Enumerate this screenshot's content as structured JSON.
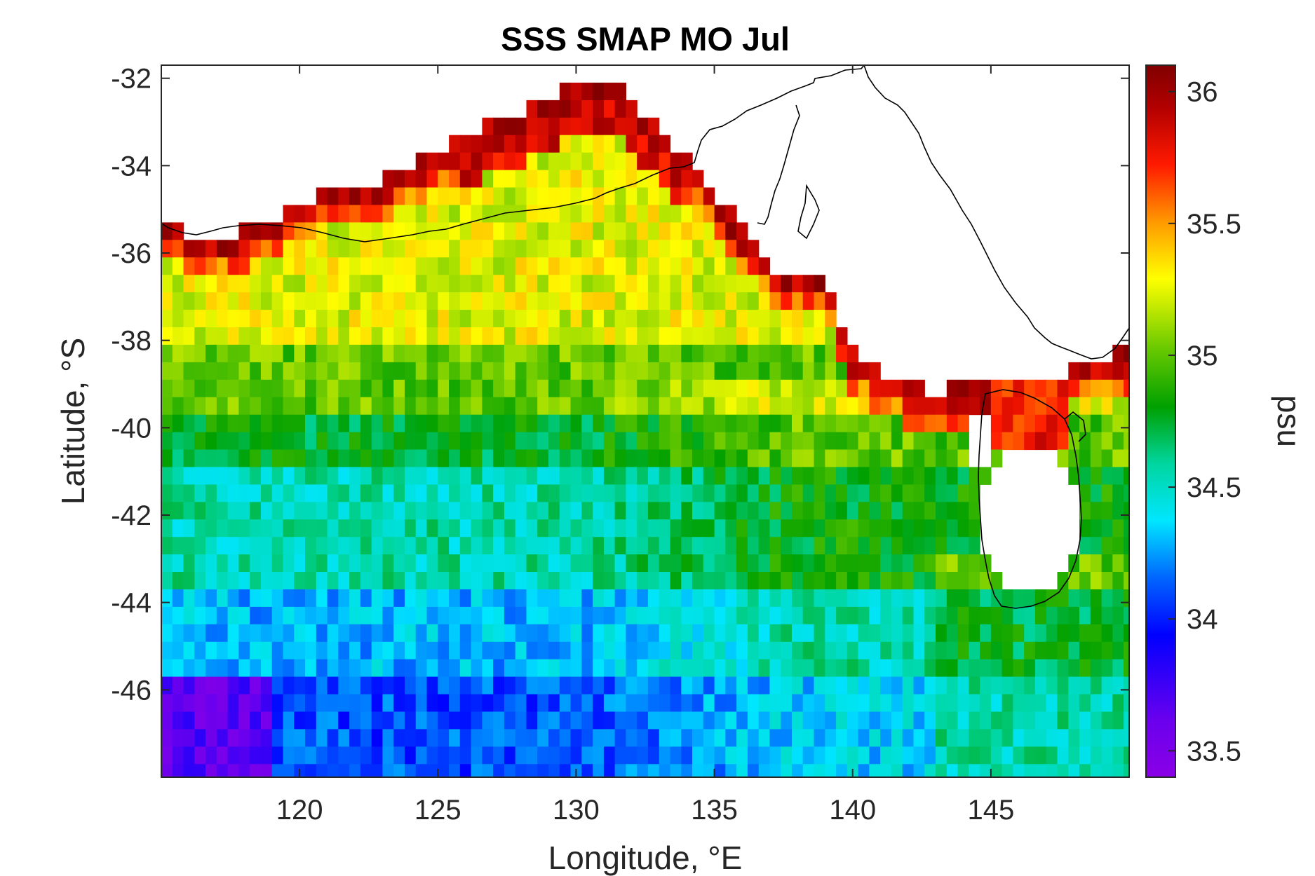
{
  "figure": {
    "title": "SSS SMAP MO Jul",
    "xlabel": "Longitude, °E",
    "ylabel": "Latitude, °S",
    "colorbar_label": "psu"
  },
  "chart_data": {
    "type": "heatmap",
    "title": "SSS SMAP MO Jul",
    "xlabel": "Longitude, °E",
    "ylabel": "Latitude, °S",
    "xlim": [
      115,
      150
    ],
    "ylim": [
      -48,
      -31.7
    ],
    "x_ticks": [
      120,
      125,
      130,
      135,
      140,
      145
    ],
    "x_tick_labels": [
      "120",
      "125",
      "130",
      "135",
      "140",
      "145"
    ],
    "y_ticks": [
      -32,
      -34,
      -36,
      -38,
      -40,
      -42,
      -44,
      -46
    ],
    "y_tick_labels": [
      "-32",
      "-34",
      "-36",
      "-38",
      "-40",
      "-42",
      "-44",
      "-46"
    ],
    "colorbar": {
      "label": "psu",
      "range": [
        33.4,
        36.1
      ],
      "ticks": [
        33.5,
        34,
        34.5,
        35,
        35.5,
        36
      ],
      "tick_labels": [
        "33.5",
        "34",
        "34.5",
        "35",
        "35.5",
        "36"
      ],
      "colormap": "jet-like (purple-blue-cyan-green-yellow-red-darkred)"
    },
    "grid": false,
    "regional_values_psu": [
      {
        "region": "Great Australian Bight coast, 128-133 E, ~33 S",
        "value": 36.0
      },
      {
        "region": "Bight interior, 125-135 E, 34-36 S",
        "value": 35.4
      },
      {
        "region": "Band near 38-39 S",
        "value": 35.0
      },
      {
        "region": "40-43 S, 120-130 E",
        "value": 34.5
      },
      {
        "region": "Southwest corner, 115-118 E, 46-48 S",
        "value": 33.6
      },
      {
        "region": "Bass Strait, ~146 E, 39-40 S",
        "value": 35.8
      },
      {
        "region": "East of Tasmania, 148-150 E",
        "value": 35.2
      }
    ],
    "land_outlines": [
      "South Australia / Victoria coastline",
      "Tasmania"
    ]
  }
}
